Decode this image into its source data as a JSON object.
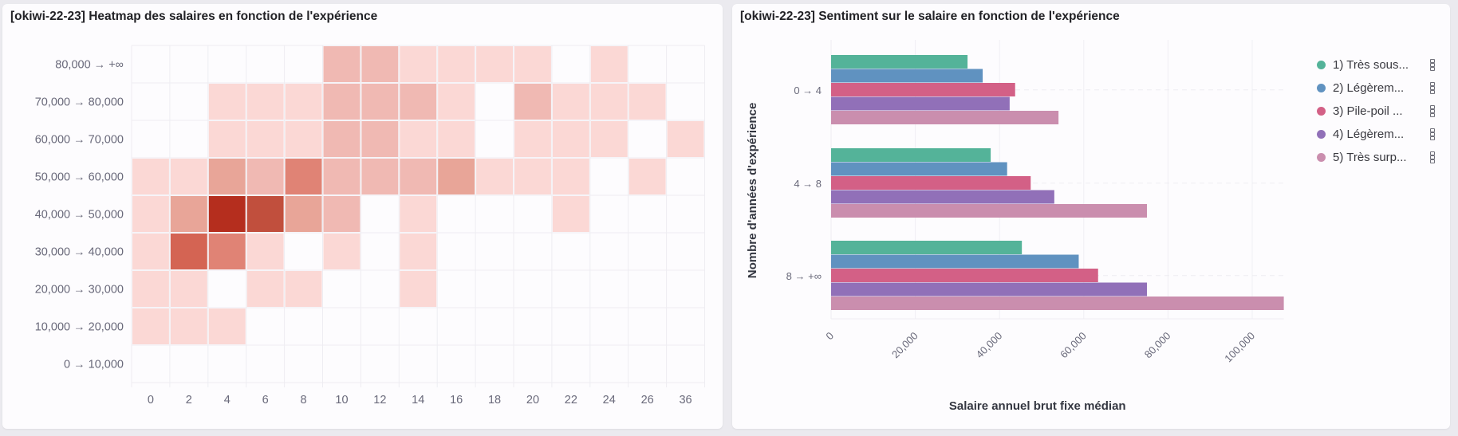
{
  "panels": {
    "left": {
      "title": "[okiwi-22-23] Heatmap des salaires en fonction de l'expérience"
    },
    "right": {
      "title": "[okiwi-22-23] Sentiment sur le salaire en fonction de l'expérience"
    }
  },
  "chart_data": [
    {
      "type": "heatmap",
      "title": "[okiwi-22-23] Heatmap des salaires en fonction de l'expérience",
      "xlabel": "",
      "ylabel": "",
      "x_categories": [
        "0",
        "2",
        "4",
        "6",
        "8",
        "10",
        "12",
        "14",
        "16",
        "18",
        "20",
        "22",
        "24",
        "26",
        "36"
      ],
      "y_categories": [
        "80,000 → +∞",
        "70,000 → 80,000",
        "60,000 → 70,000",
        "50,000 → 60,000",
        "40,000 → 50,000",
        "30,000 → 40,000",
        "20,000 → 30,000",
        "10,000 → 20,000",
        "0 → 10,000"
      ],
      "value_note": "relative intensity level (0 = empty, 7 = darkest)",
      "values": [
        [
          0,
          0,
          0,
          0,
          0,
          2,
          2,
          1,
          1,
          1,
          1,
          0,
          1,
          0,
          0
        ],
        [
          0,
          0,
          1,
          1,
          1,
          2,
          2,
          2,
          1,
          0,
          2,
          1,
          1,
          1,
          0
        ],
        [
          0,
          0,
          1,
          1,
          1,
          2,
          2,
          1,
          1,
          0,
          1,
          1,
          1,
          0,
          1
        ],
        [
          1,
          1,
          3,
          2,
          4,
          2,
          2,
          2,
          3,
          1,
          1,
          1,
          0,
          1,
          0
        ],
        [
          1,
          3,
          7,
          6,
          3,
          2,
          0,
          1,
          0,
          0,
          0,
          1,
          0,
          0,
          0
        ],
        [
          1,
          5,
          4,
          1,
          0,
          1,
          0,
          1,
          0,
          0,
          0,
          0,
          0,
          0,
          0
        ],
        [
          1,
          1,
          0,
          1,
          1,
          0,
          0,
          1,
          0,
          0,
          0,
          0,
          0,
          0,
          0
        ],
        [
          1,
          1,
          1,
          0,
          0,
          0,
          0,
          0,
          0,
          0,
          0,
          0,
          0,
          0,
          0
        ],
        [
          0,
          0,
          0,
          0,
          0,
          0,
          0,
          0,
          0,
          0,
          0,
          0,
          0,
          0,
          0
        ]
      ],
      "color_scale": [
        "#ffffff",
        "#fbd8d5",
        "#f0b9b3",
        "#e8a598",
        "#e08375",
        "#d46453",
        "#c14f3d",
        "#b52e1e"
      ],
      "grid": true
    },
    {
      "type": "bar",
      "orientation": "horizontal",
      "title": "[okiwi-22-23] Sentiment sur le salaire en fonction de l'expérience",
      "xlabel": "Salaire annuel brut fixe médian",
      "ylabel": "Nombre d'années d'expérience",
      "categories": [
        "0 → 4",
        "4 → 8",
        "8 → +∞"
      ],
      "xlim": [
        0,
        107500
      ],
      "x_ticks": [
        0,
        20000,
        40000,
        60000,
        80000,
        100000
      ],
      "x_tick_labels": [
        "0",
        "20,000",
        "40,000",
        "60,000",
        "80,000",
        "100,000"
      ],
      "legend_position": "right",
      "series": [
        {
          "name": "1) Très sous...",
          "color": "#54b399",
          "values": [
            32400,
            37900,
            45300
          ]
        },
        {
          "name": "2) Légèrem...",
          "color": "#6092c0",
          "values": [
            36000,
            41800,
            58800
          ]
        },
        {
          "name": "3) Pile-poil ...",
          "color": "#d36086",
          "values": [
            43700,
            47400,
            63400
          ]
        },
        {
          "name": "4) Légèrem...",
          "color": "#9170b8",
          "values": [
            42400,
            53000,
            75000
          ]
        },
        {
          "name": "5) Très surp...",
          "color": "#ca8eae",
          "values": [
            54000,
            75000,
            107500
          ]
        }
      ],
      "grid": true
    }
  ]
}
